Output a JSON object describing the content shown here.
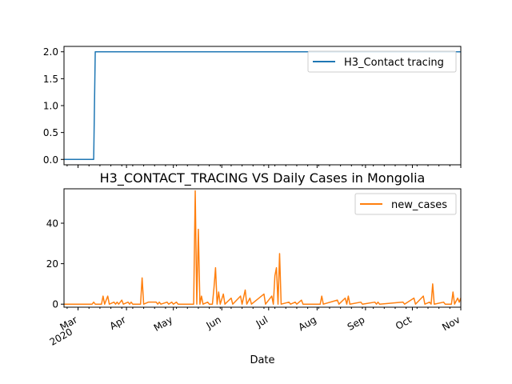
{
  "chart_data": [
    {
      "type": "line",
      "title": "",
      "xlabel": "",
      "ylabel": "",
      "x_range": [
        "2020-02-21",
        "2020-11-01"
      ],
      "ylim": [
        -0.1,
        2.1
      ],
      "yticks": [
        "0.0",
        "0.5",
        "1.0",
        "1.5",
        "2.0"
      ],
      "grid": false,
      "legend": "upper right",
      "series": [
        {
          "name": "H3_Contact tracing",
          "color": "#1f77b4",
          "points": [
            [
              "2020-02-21",
              0
            ],
            [
              "2020-03-11",
              0
            ],
            [
              "2020-03-12",
              2
            ],
            [
              "2020-11-01",
              2
            ]
          ]
        }
      ]
    },
    {
      "type": "line",
      "title": "H3_CONTACT_TRACING VS Daily Cases in Mongolia",
      "xlabel": "Date",
      "ylabel": "",
      "x_range": [
        "2020-02-21",
        "2020-11-01"
      ],
      "ylim": [
        -1.5,
        57
      ],
      "yticks": [
        "0",
        "20",
        "40"
      ],
      "xticks": [
        {
          "date": "2020-03-01",
          "label": "Mar",
          "sublabel": "2020"
        },
        {
          "date": "2020-04-01",
          "label": "Apr"
        },
        {
          "date": "2020-05-01",
          "label": "May"
        },
        {
          "date": "2020-06-01",
          "label": "Jun"
        },
        {
          "date": "2020-07-01",
          "label": "Jul"
        },
        {
          "date": "2020-08-01",
          "label": "Aug"
        },
        {
          "date": "2020-09-01",
          "label": "Sep"
        },
        {
          "date": "2020-10-01",
          "label": "Oct"
        },
        {
          "date": "2020-11-01",
          "label": "Nov"
        }
      ],
      "grid": false,
      "legend": "upper right",
      "series": [
        {
          "name": "new_cases",
          "color": "#ff7f0e",
          "points": [
            [
              "2020-02-21",
              0
            ],
            [
              "2020-03-10",
              0
            ],
            [
              "2020-03-11",
              1
            ],
            [
              "2020-03-12",
              0
            ],
            [
              "2020-03-16",
              0
            ],
            [
              "2020-03-17",
              4
            ],
            [
              "2020-03-18",
              0
            ],
            [
              "2020-03-20",
              4
            ],
            [
              "2020-03-21",
              0
            ],
            [
              "2020-03-24",
              1
            ],
            [
              "2020-03-25",
              0
            ],
            [
              "2020-03-26",
              1
            ],
            [
              "2020-03-27",
              0
            ],
            [
              "2020-03-29",
              2
            ],
            [
              "2020-03-30",
              0
            ],
            [
              "2020-04-02",
              1
            ],
            [
              "2020-04-03",
              0
            ],
            [
              "2020-04-04",
              1
            ],
            [
              "2020-04-05",
              0
            ],
            [
              "2020-04-10",
              0
            ],
            [
              "2020-04-11",
              13
            ],
            [
              "2020-04-12",
              0
            ],
            [
              "2020-04-15",
              1
            ],
            [
              "2020-04-16",
              1
            ],
            [
              "2020-04-20",
              1
            ],
            [
              "2020-04-21",
              0
            ],
            [
              "2020-04-22",
              1
            ],
            [
              "2020-04-23",
              0
            ],
            [
              "2020-04-27",
              1
            ],
            [
              "2020-04-28",
              0
            ],
            [
              "2020-04-30",
              1
            ],
            [
              "2020-05-01",
              0
            ],
            [
              "2020-05-03",
              1
            ],
            [
              "2020-05-04",
              0
            ],
            [
              "2020-05-14",
              0
            ],
            [
              "2020-05-15",
              56
            ],
            [
              "2020-05-16",
              0
            ],
            [
              "2020-05-17",
              37
            ],
            [
              "2020-05-18",
              0
            ],
            [
              "2020-05-19",
              4
            ],
            [
              "2020-05-20",
              0
            ],
            [
              "2020-05-23",
              1
            ],
            [
              "2020-05-24",
              0
            ],
            [
              "2020-05-26",
              0
            ],
            [
              "2020-05-27",
              8
            ],
            [
              "2020-05-28",
              18
            ],
            [
              "2020-05-29",
              0
            ],
            [
              "2020-05-30",
              6
            ],
            [
              "2020-05-31",
              0
            ],
            [
              "2020-06-02",
              5
            ],
            [
              "2020-06-03",
              0
            ],
            [
              "2020-06-07",
              3
            ],
            [
              "2020-06-08",
              0
            ],
            [
              "2020-06-13",
              4
            ],
            [
              "2020-06-14",
              0
            ],
            [
              "2020-06-16",
              7
            ],
            [
              "2020-06-17",
              0
            ],
            [
              "2020-06-19",
              3
            ],
            [
              "2020-06-20",
              0
            ],
            [
              "2020-06-28",
              5
            ],
            [
              "2020-06-29",
              0
            ],
            [
              "2020-07-03",
              4
            ],
            [
              "2020-07-04",
              0
            ],
            [
              "2020-07-05",
              14
            ],
            [
              "2020-07-06",
              18
            ],
            [
              "2020-07-07",
              0
            ],
            [
              "2020-07-08",
              25
            ],
            [
              "2020-07-09",
              0
            ],
            [
              "2020-07-14",
              1
            ],
            [
              "2020-07-15",
              0
            ],
            [
              "2020-07-18",
              1
            ],
            [
              "2020-07-19",
              0
            ],
            [
              "2020-07-22",
              2
            ],
            [
              "2020-07-23",
              0
            ],
            [
              "2020-08-03",
              0
            ],
            [
              "2020-08-04",
              4
            ],
            [
              "2020-08-05",
              0
            ],
            [
              "2020-08-14",
              2
            ],
            [
              "2020-08-15",
              0
            ],
            [
              "2020-08-19",
              3
            ],
            [
              "2020-08-20",
              0
            ],
            [
              "2020-08-21",
              4
            ],
            [
              "2020-08-22",
              0
            ],
            [
              "2020-08-29",
              1
            ],
            [
              "2020-08-30",
              0
            ],
            [
              "2020-09-07",
              1
            ],
            [
              "2020-09-08",
              0
            ],
            [
              "2020-09-09",
              1
            ],
            [
              "2020-09-10",
              0
            ],
            [
              "2020-09-25",
              1
            ],
            [
              "2020-09-26",
              0
            ],
            [
              "2020-10-02",
              3
            ],
            [
              "2020-10-03",
              0
            ],
            [
              "2020-10-08",
              4
            ],
            [
              "2020-10-09",
              0
            ],
            [
              "2020-10-12",
              1
            ],
            [
              "2020-10-13",
              0
            ],
            [
              "2020-10-14",
              10
            ],
            [
              "2020-10-15",
              0
            ],
            [
              "2020-10-21",
              1
            ],
            [
              "2020-10-22",
              0
            ],
            [
              "2020-10-26",
              0
            ],
            [
              "2020-10-27",
              6
            ],
            [
              "2020-10-28",
              0
            ],
            [
              "2020-10-30",
              3
            ],
            [
              "2020-10-31",
              1
            ],
            [
              "2020-11-01",
              3
            ]
          ]
        }
      ]
    }
  ]
}
